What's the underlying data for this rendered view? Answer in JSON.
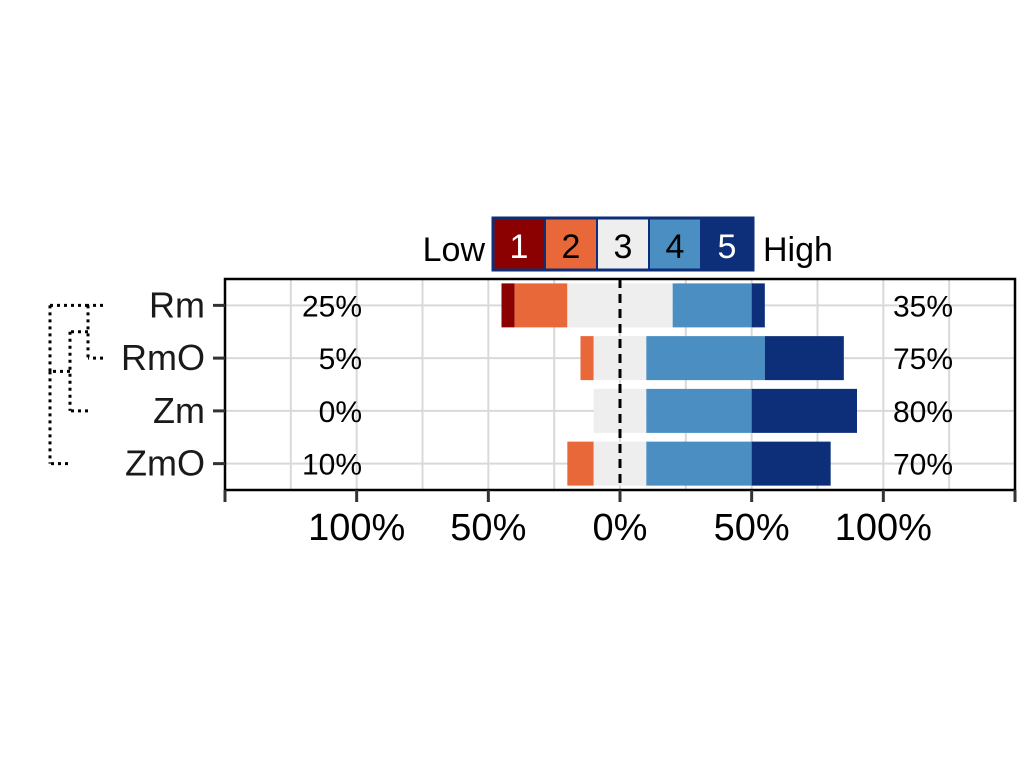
{
  "chart_data": {
    "type": "bar",
    "subtype": "diverging-stacked-likert",
    "legend": {
      "placement": "top",
      "low_label": "Low",
      "high_label": "High",
      "levels": [
        {
          "label": "1",
          "color": "#8b0000"
        },
        {
          "label": "2",
          "color": "#e8683a"
        },
        {
          "label": "3",
          "color": "#eeeeee"
        },
        {
          "label": "4",
          "color": "#4a8ec2"
        },
        {
          "label": "5",
          "color": "#0d2f7a"
        }
      ]
    },
    "categories": [
      "Rm",
      "RmO",
      "Zm",
      "ZmO"
    ],
    "series": [
      {
        "name": "1",
        "values": [
          5,
          0,
          0,
          0
        ]
      },
      {
        "name": "2",
        "values": [
          20,
          5,
          0,
          10
        ]
      },
      {
        "name": "3",
        "values": [
          40,
          20,
          20,
          20
        ]
      },
      {
        "name": "4",
        "values": [
          30,
          45,
          40,
          40
        ]
      },
      {
        "name": "5",
        "values": [
          5,
          30,
          40,
          30
        ]
      }
    ],
    "left_percent_labels": [
      "25%",
      "5%",
      "0%",
      "10%"
    ],
    "right_percent_labels": [
      "35%",
      "75%",
      "80%",
      "70%"
    ],
    "x_tick_labels": [
      "100%",
      "50%",
      "0%",
      "50%",
      "100%"
    ],
    "x_tick_values": [
      -100,
      -50,
      0,
      50,
      100
    ],
    "xlim": [
      -150,
      150
    ],
    "grid": true,
    "dendrogram": {
      "merges": [
        [
          "Rm",
          "RmO"
        ],
        [
          "Rm+RmO",
          "Zm"
        ],
        [
          "Rm+RmO+Zm",
          "ZmO"
        ]
      ]
    }
  }
}
